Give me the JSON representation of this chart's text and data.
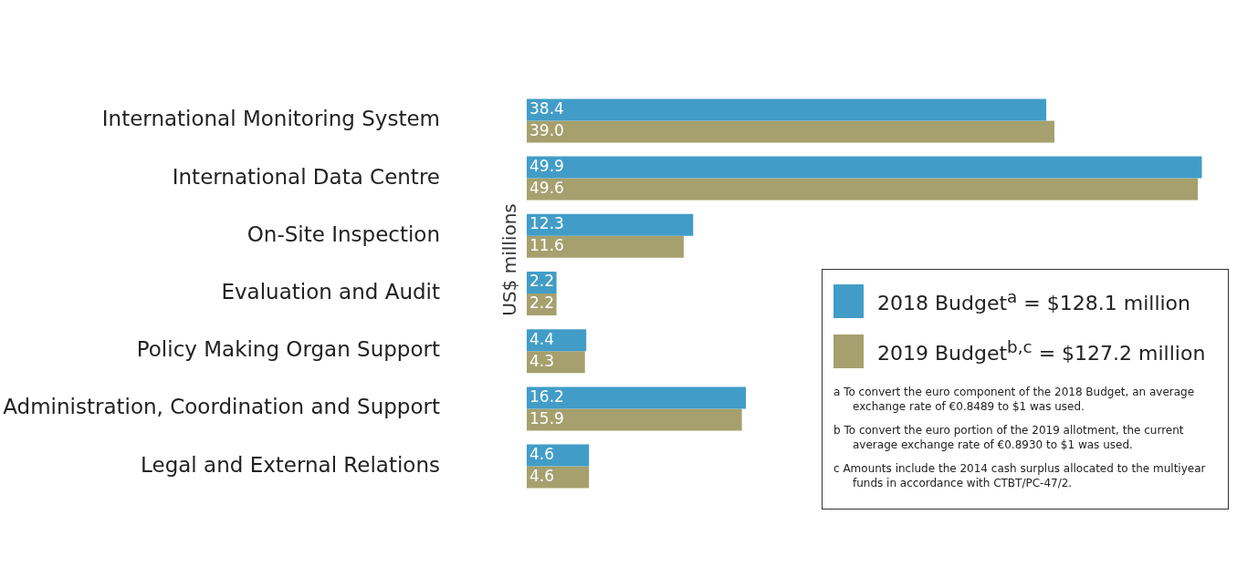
{
  "chart_data": {
    "type": "bar",
    "orientation": "horizontal",
    "ylabel": "US$ millions",
    "categories": [
      "International Monitoring System",
      "International Data Centre",
      "On-Site Inspection",
      "Evaluation and Audit",
      "Policy Making Organ Support",
      "Administration, Coordination and Support",
      "Legal and External Relations"
    ],
    "series": [
      {
        "name": "2018 Budget$^{a}$ = $128.1 million",
        "color": "#419dc8",
        "values": [
          38.4,
          49.9,
          12.3,
          2.2,
          4.4,
          16.2,
          4.6
        ],
        "value_labels": [
          "38.4",
          "49.9",
          "12.3",
          "2.2",
          "4.4",
          "16.2",
          "4.6"
        ]
      },
      {
        "name": "2019 Budget$^{b,c}$ = $127.2 million",
        "color": "#a5a06d",
        "values": [
          39.0,
          49.6,
          11.6,
          2.2,
          4.3,
          15.9,
          4.6
        ],
        "value_labels": [
          "39.0",
          "49.6",
          "11.6",
          "2.2",
          "4.3",
          "15.9",
          "4.6"
        ]
      }
    ],
    "legend": "bottom right",
    "annotations": [
      "a To convert the euro component of the 2018 Budget, an average exchange rate of €0.8489 to $1 was used.",
      "b To convert the euro portion of the 2019 allotment, the current average exchange rate of €0.8930 to $1 was used.",
      "c Amounts include the 2014 cash surplus allocated to the multiyear funds in accordance with CTBT/PC-47/2."
    ]
  }
}
